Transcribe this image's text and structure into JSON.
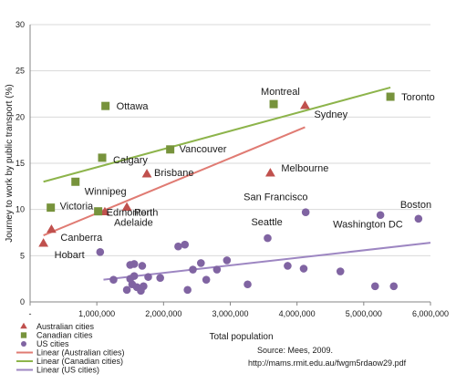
{
  "chart_data": {
    "type": "scatter",
    "xlabel": "Total population",
    "ylabel": "Journey to work by public transport (%)",
    "xlim": [
      0,
      6000000
    ],
    "ylim": [
      0,
      30
    ],
    "xticks": [
      0,
      1000000,
      2000000,
      3000000,
      4000000,
      5000000,
      6000000
    ],
    "xtick_labels": [
      "-",
      "1,000,000",
      "2,000,000",
      "3,000,000",
      "4,000,000",
      "5,000,000",
      "6,000,000"
    ],
    "yticks": [
      0,
      5,
      10,
      15,
      20,
      25,
      30
    ],
    "ytick_labels": [
      "0",
      "5",
      "10",
      "15",
      "20",
      "25",
      "30"
    ],
    "grid": "horizontal",
    "legend_position": "bottom-left",
    "series": [
      {
        "name": "Australian cities",
        "marker": "triangle",
        "color": "#c0504d",
        "points": [
          {
            "label": "Hobart",
            "x": 200000,
            "y": 6.3
          },
          {
            "label": "Canberra",
            "x": 320000,
            "y": 7.8
          },
          {
            "label": "Adelaide",
            "x": 1120000,
            "y": 9.7
          },
          {
            "label": "Perth",
            "x": 1450000,
            "y": 10.2
          },
          {
            "label": "Brisbane",
            "x": 1750000,
            "y": 13.8
          },
          {
            "label": "Melbourne",
            "x": 3600000,
            "y": 13.9
          },
          {
            "label": "Sydney",
            "x": 4120000,
            "y": 21.2
          }
        ]
      },
      {
        "name": "Canadian cities",
        "marker": "square",
        "color": "#77933c",
        "points": [
          {
            "label": "Victoria",
            "x": 310000,
            "y": 10.2
          },
          {
            "label": "Winnipeg",
            "x": 680000,
            "y": 13.0
          },
          {
            "label": "Ottawa",
            "x": 1130000,
            "y": 21.2
          },
          {
            "label": "Calgary",
            "x": 1080000,
            "y": 15.6
          },
          {
            "label": "Edmonton",
            "x": 1020000,
            "y": 9.8
          },
          {
            "label": "Vancouver",
            "x": 2100000,
            "y": 16.5
          },
          {
            "label": "Montreal",
            "x": 3650000,
            "y": 21.4
          },
          {
            "label": "Toronto",
            "x": 5400000,
            "y": 22.2
          }
        ]
      },
      {
        "name": "US cities",
        "marker": "circle",
        "color": "#8064a2",
        "points": [
          {
            "label": "Boston",
            "x": 5820000,
            "y": 9.0
          },
          {
            "label": "Washington DC",
            "x": 5250000,
            "y": 9.4
          },
          {
            "label": "San Francisco",
            "x": 4130000,
            "y": 9.7
          },
          {
            "label": "Seattle",
            "x": 3560000,
            "y": 6.9
          },
          {
            "label": "",
            "x": 1050000,
            "y": 5.4
          },
          {
            "label": "",
            "x": 1250000,
            "y": 2.4
          },
          {
            "label": "",
            "x": 1500000,
            "y": 4.0
          },
          {
            "label": "",
            "x": 1560000,
            "y": 4.1
          },
          {
            "label": "",
            "x": 1680000,
            "y": 3.9
          },
          {
            "label": "",
            "x": 1500000,
            "y": 2.5
          },
          {
            "label": "",
            "x": 1560000,
            "y": 2.8
          },
          {
            "label": "",
            "x": 1450000,
            "y": 1.3
          },
          {
            "label": "",
            "x": 1600000,
            "y": 1.6
          },
          {
            "label": "",
            "x": 1530000,
            "y": 1.9
          },
          {
            "label": "",
            "x": 1660000,
            "y": 1.2
          },
          {
            "label": "",
            "x": 1770000,
            "y": 2.7
          },
          {
            "label": "",
            "x": 1700000,
            "y": 1.7
          },
          {
            "label": "",
            "x": 1950000,
            "y": 2.6
          },
          {
            "label": "",
            "x": 2220000,
            "y": 6.0
          },
          {
            "label": "",
            "x": 2320000,
            "y": 6.2
          },
          {
            "label": "",
            "x": 2440000,
            "y": 3.5
          },
          {
            "label": "",
            "x": 2360000,
            "y": 1.3
          },
          {
            "label": "",
            "x": 2560000,
            "y": 4.2
          },
          {
            "label": "",
            "x": 2640000,
            "y": 2.4
          },
          {
            "label": "",
            "x": 2800000,
            "y": 3.5
          },
          {
            "label": "",
            "x": 2950000,
            "y": 4.5
          },
          {
            "label": "",
            "x": 3260000,
            "y": 1.9
          },
          {
            "label": "",
            "x": 3860000,
            "y": 3.9
          },
          {
            "label": "",
            "x": 4100000,
            "y": 3.6
          },
          {
            "label": "",
            "x": 4650000,
            "y": 3.3
          },
          {
            "label": "",
            "x": 5170000,
            "y": 1.7
          },
          {
            "label": "",
            "x": 5450000,
            "y": 1.7
          }
        ]
      }
    ],
    "trendlines": [
      {
        "name": "Linear (Australian cities)",
        "color": "#e07b73",
        "from": [
          200000,
          7.2
        ],
        "to": [
          4120000,
          18.9
        ]
      },
      {
        "name": "Linear (Canadian cities)",
        "color": "#8db44b",
        "from": [
          200000,
          13.0
        ],
        "to": [
          5400000,
          23.2
        ]
      },
      {
        "name": "Linear (US cities)",
        "color": "#9d86c2",
        "from": [
          1100000,
          2.4
        ],
        "to": [
          6000000,
          6.4
        ]
      }
    ],
    "annotations": [
      "Source: Mees, 2009.",
      "http://mams.rmit.edu.au/fwgm5rdaow29.pdf"
    ]
  }
}
